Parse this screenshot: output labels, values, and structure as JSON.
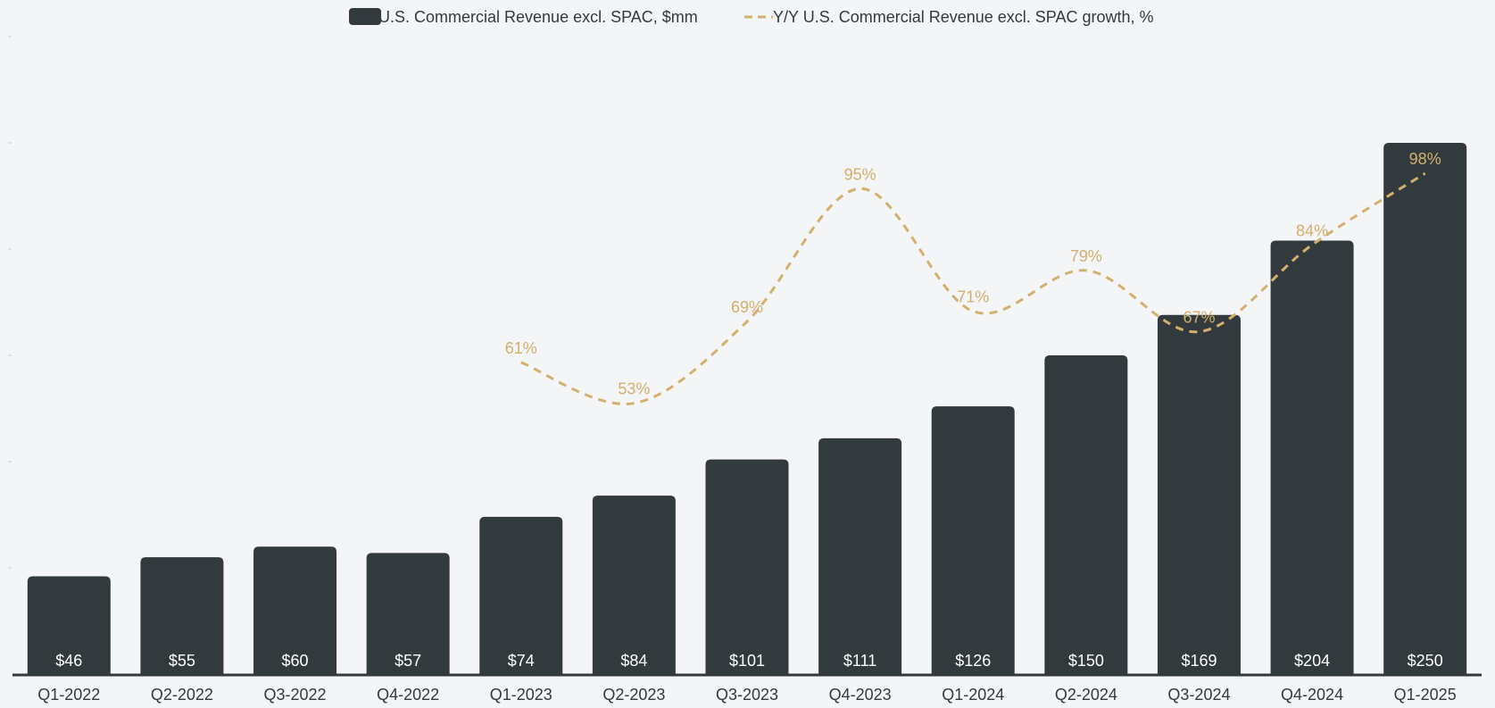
{
  "legend": {
    "bar_label": "U.S. Commercial Revenue excl. SPAC, $mm",
    "line_label": "Y/Y U.S. Commercial Revenue excl. SPAC growth, %"
  },
  "colors": {
    "background": "#f3f5f7",
    "bar": "#323a3d",
    "line": "#d4b06e",
    "axis": "#333a3e"
  },
  "chart_data": {
    "type": "bar",
    "categories": [
      "Q1-2022",
      "Q2-2022",
      "Q3-2022",
      "Q4-2022",
      "Q1-2023",
      "Q2-2023",
      "Q3-2023",
      "Q4-2023",
      "Q1-2024",
      "Q2-2024",
      "Q3-2024",
      "Q4-2024",
      "Q1-2025"
    ],
    "series": [
      {
        "name": "U.S. Commercial Revenue excl. SPAC, $mm",
        "type": "bar",
        "axis": "left",
        "values": [
          46,
          55,
          60,
          57,
          74,
          84,
          101,
          111,
          126,
          150,
          169,
          204,
          250
        ],
        "labels": [
          "$46",
          "$55",
          "$60",
          "$57",
          "$74",
          "$84",
          "$101",
          "$111",
          "$126",
          "$150",
          "$169",
          "$204",
          "$250"
        ]
      },
      {
        "name": "Y/Y U.S. Commercial Revenue excl. SPAC growth, %",
        "type": "line",
        "style": "dashed-smooth",
        "axis": "right",
        "values": [
          null,
          null,
          null,
          null,
          61,
          53,
          69,
          95,
          71,
          79,
          67,
          84,
          98
        ],
        "labels": [
          "",
          "",
          "",
          "",
          "61%",
          "53%",
          "69%",
          "95%",
          "71%",
          "79%",
          "67%",
          "84%",
          "98%"
        ]
      }
    ],
    "ylim_left": [
      0,
      300
    ],
    "ylim_right": [
      0,
      130
    ],
    "title": "",
    "xlabel": "",
    "ylabel": "",
    "grid": false,
    "legend_position": "top-center"
  }
}
